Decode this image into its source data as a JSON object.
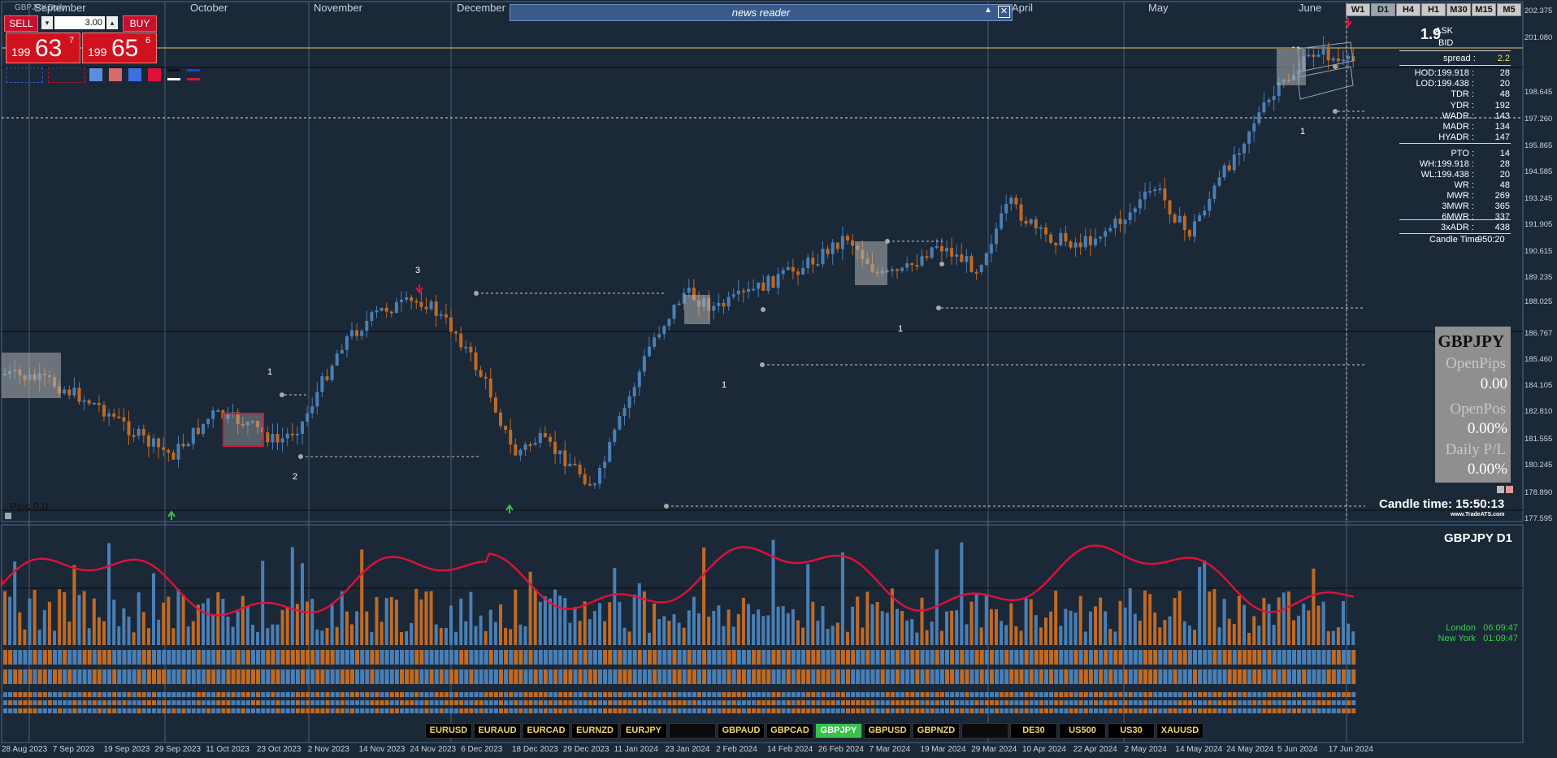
{
  "window": {
    "title": "GBPJPY,Daily"
  },
  "trade_panel": {
    "sell_label": "SELL",
    "buy_label": "BUY",
    "lot_value": "3.00",
    "bid": {
      "big_figure": "199",
      "pips": "63",
      "fraction": "7"
    },
    "ask": {
      "big_figure": "199",
      "pips": "65",
      "fraction": "6"
    }
  },
  "news_reader": {
    "title": "news reader"
  },
  "timeframes": [
    {
      "label": "W1",
      "active": false
    },
    {
      "label": "D1",
      "active": true
    },
    {
      "label": "H4",
      "active": false
    },
    {
      "label": "H1",
      "active": false
    },
    {
      "label": "M30",
      "active": false
    },
    {
      "label": "M15",
      "active": false
    },
    {
      "label": "M5",
      "active": false
    }
  ],
  "months": [
    "September",
    "October",
    "November",
    "December",
    "April",
    "May",
    "June"
  ],
  "stats": {
    "spread_big": "1.9",
    "ask_label": "ASK",
    "bid_label": "BID",
    "spread_label": "spread :",
    "spread_value": "2.2",
    "rows": [
      {
        "label": "HOD:199.918 :",
        "value": "28"
      },
      {
        "label": "LOD:199.438 :",
        "value": "20"
      },
      {
        "label": "TDR :",
        "value": "48"
      },
      {
        "label": "YDR :",
        "value": "192"
      },
      {
        "label": "WADR :",
        "value": "143"
      },
      {
        "label": "MADR :",
        "value": "134"
      },
      {
        "label": "HYADR :",
        "value": "147"
      },
      {
        "label": "PTO :",
        "value": "14"
      },
      {
        "label": "WH:199.918 :",
        "value": "28"
      },
      {
        "label": "WL:199.438 :",
        "value": "20"
      },
      {
        "label": "WR :",
        "value": "48"
      },
      {
        "label": "MWR :",
        "value": "269"
      },
      {
        "label": "3MWR :",
        "value": "365"
      },
      {
        "label": "6MWR :",
        "value": "337"
      },
      {
        "label": "3xADR :",
        "value": "438"
      }
    ],
    "candle_time_label": "Candle Time",
    "candle_time_value": "950:20"
  },
  "position_box": {
    "symbol": "GBPJPY",
    "open_pips_label": "OpenPips",
    "open_pips_value": "0.00",
    "open_pos_label": "OpenPos",
    "open_pos_value": "0.00%",
    "daily_pl_label": "Daily P/L",
    "daily_pl_value": "0.00%"
  },
  "candle_time_big": "Candle time:  15:50:13",
  "brand": "www.TradeATS.com",
  "pips_label": "Pips 0.0",
  "price_axis": [
    "202.375",
    "201.080",
    "198.645",
    "197.260",
    "195.865",
    "194.585",
    "193.245",
    "191.905",
    "190.615",
    "189.235",
    "188.025",
    "186.767",
    "185.460",
    "184.105",
    "182.810",
    "181.555",
    "180.245",
    "178.890",
    "177.595"
  ],
  "lower_panel": {
    "title": "GBPJPY  D1",
    "sessions": [
      {
        "city": "London",
        "time": "06:09:47"
      },
      {
        "city": "New York",
        "time": "01:09:47"
      }
    ]
  },
  "date_axis": [
    "28 Aug 2023",
    "7 Sep 2023",
    "19 Sep 2023",
    "29 Sep 2023",
    "11 Oct 2023",
    "23 Oct 2023",
    "2 Nov 2023",
    "14 Nov 2023",
    "24 Nov 2023",
    "6 Dec 2023",
    "18 Dec 2023",
    "29 Dec 2023",
    "11 Jan 2024",
    "23 Jan 2024",
    "2 Feb 2024",
    "14 Feb 2024",
    "26 Feb 2024",
    "7 Mar 2024",
    "19 Mar 2024",
    "29 Mar 2024",
    "10 Apr 2024",
    "22 Apr 2024",
    "2 May 2024",
    "14 May 2024",
    "24 May 2024",
    "5 Jun 2024",
    "17 Jun 2024"
  ],
  "symbols": [
    {
      "label": "EURUSD",
      "active": false
    },
    {
      "label": "EURAUD",
      "active": false
    },
    {
      "label": "EURCAD",
      "active": false
    },
    {
      "label": "EURNZD",
      "active": false
    },
    {
      "label": "EURJPY",
      "active": false
    },
    {
      "label": "",
      "active": false
    },
    {
      "label": "GBPAUD",
      "active": false
    },
    {
      "label": "GBPCAD",
      "active": false
    },
    {
      "label": "GBPJPY",
      "active": true
    },
    {
      "label": "GBPUSD",
      "active": false
    },
    {
      "label": "GBPNZD",
      "active": false
    },
    {
      "label": "",
      "active": false
    },
    {
      "label": "DE30",
      "active": false
    },
    {
      "label": "US500",
      "active": false
    },
    {
      "label": "US30",
      "active": false
    },
    {
      "label": "XAUUSD",
      "active": false
    }
  ],
  "annotations": [
    "3",
    "1",
    "2",
    "1",
    "1",
    "1"
  ],
  "colors": {
    "bull": "#4a7fb5",
    "bear": "#c06a23",
    "background": "#1b2838",
    "accent_red": "#d0121f",
    "active_green": "#37c24a"
  }
}
